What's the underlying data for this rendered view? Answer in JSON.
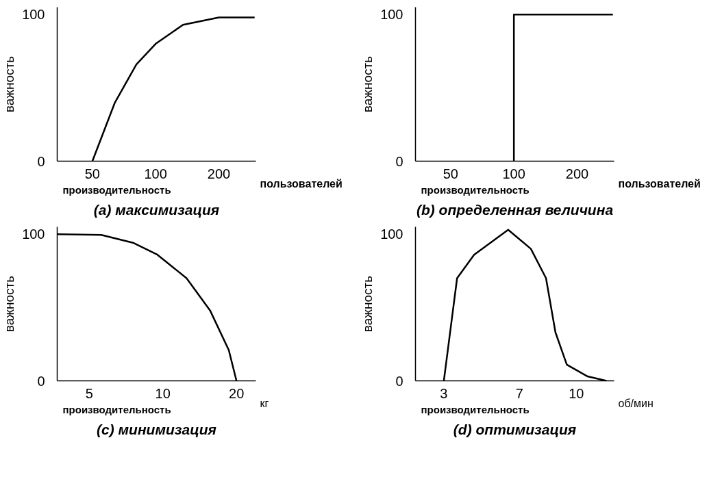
{
  "chart_data": [
    {
      "type": "line",
      "title": "(a) максимизация",
      "xlabel": "производительность",
      "ylabel": "важность",
      "annotations": [
        "пользователей"
      ],
      "log": "x",
      "xlim": [
        34,
        300
      ],
      "xticks": [
        50,
        100,
        200
      ],
      "ylim": [
        0,
        105
      ],
      "yticks": [
        0,
        100
      ],
      "series": [
        {
          "color": "#000000",
          "x": [
            50,
            64,
            81,
            100,
            135,
            200,
            296
          ],
          "values": [
            0,
            40,
            66,
            80,
            93,
            98,
            98
          ]
        }
      ]
    },
    {
      "type": "line",
      "title": "(b) определенная величина",
      "xlabel": "производительность",
      "ylabel": "важность",
      "annotations": [
        "пользователей"
      ],
      "log": "x",
      "xlim": [
        34,
        300
      ],
      "xticks": [
        50,
        100,
        200
      ],
      "ylim": [
        0,
        105
      ],
      "yticks": [
        0,
        100
      ],
      "series": [
        {
          "color": "#000000",
          "x": [
            100,
            100,
            296
          ],
          "values": [
            0,
            100,
            100
          ]
        }
      ]
    },
    {
      "type": "line",
      "title": "(c) минимизация",
      "xlabel": "производительность",
      "ylabel": "важность",
      "annotations": [
        "кг"
      ],
      "log": "x",
      "xlim": [
        3.7,
        24
      ],
      "xticks": [
        5,
        10,
        20
      ],
      "ylim": [
        0,
        105
      ],
      "yticks": [
        0,
        100
      ],
      "series": [
        {
          "color": "#000000",
          "x": [
            3.7,
            5.6,
            7.6,
            9.5,
            12.5,
            15.6,
            18.6,
            20
          ],
          "values": [
            100,
            99.5,
            94,
            86,
            70,
            48,
            21,
            0
          ]
        }
      ]
    },
    {
      "type": "line",
      "title": "(d) оптимизация",
      "xlabel": "производительность",
      "ylabel": "важность",
      "annotations": [
        "об/мин"
      ],
      "xlim": [
        1.5,
        12
      ],
      "xticks": [
        3,
        7,
        10
      ],
      "ylim": [
        0,
        105
      ],
      "yticks": [
        0,
        100
      ],
      "series": [
        {
          "color": "#000000",
          "x": [
            3,
            3.7,
            4.6,
            6.4,
            7.6,
            8.4,
            8.9,
            9.5,
            10.6,
            11.6
          ],
          "values": [
            0,
            70,
            86,
            103,
            90,
            70,
            33,
            11,
            3,
            0
          ]
        }
      ]
    }
  ]
}
